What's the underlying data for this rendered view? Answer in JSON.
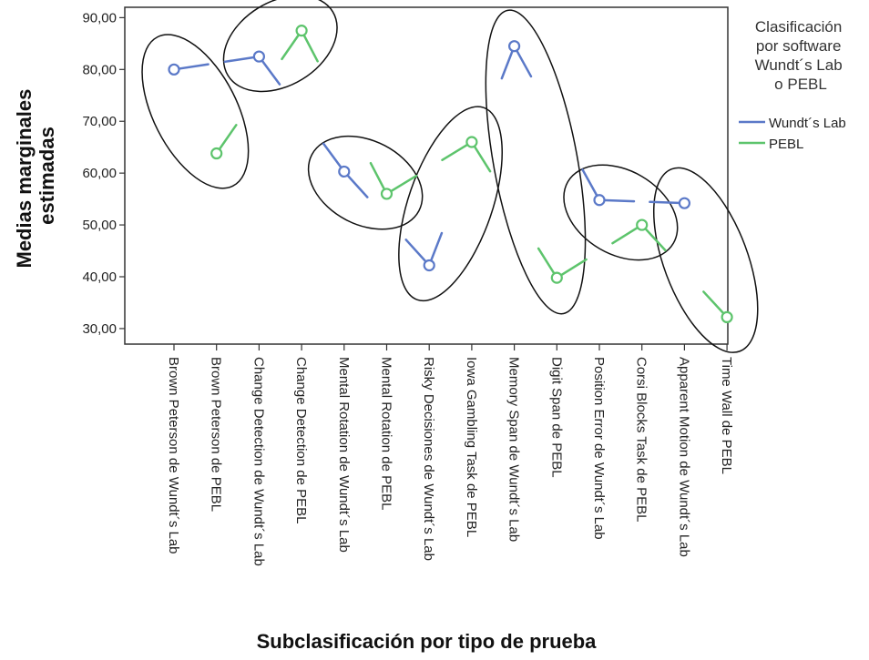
{
  "chart_data": {
    "type": "line",
    "xlabel": "Subclasificación por tipo de prueba",
    "ylabel_lines": [
      "Medias marginales",
      "estimadas"
    ],
    "ylim": [
      27,
      92
    ],
    "yticks": [
      30,
      40,
      50,
      60,
      70,
      80,
      90
    ],
    "ytick_labels": [
      "30,00",
      "40,00",
      "50,00",
      "60,00",
      "70,00",
      "80,00",
      "90,00"
    ],
    "categories": [
      "Brown Peterson de Wundt´s Lab",
      "Brown Peterson de PEBL",
      "Change Detection de Wundt´s Lab",
      "Change Detection de PEBL",
      "Mental Rotation de Wundt´s Lab",
      "Mental Rotation de PEBL",
      "Risky Decisiones de Wundt´s Lab",
      "Iowa Gambling Task de PEBL",
      "Memory Span de Wundt´s Lab",
      "Digit Span de PEBL",
      "Position Error de Wundt´s Lab",
      "Corsi Blocks Task de PEBL",
      "Apparent Motion de Wundt´s Lab",
      "Time Wall de PEBL"
    ],
    "legend": {
      "title_lines": [
        "Clasificación",
        "por software",
        "Wundt´s Lab",
        "o PEBL"
      ],
      "placement": "right"
    },
    "series": [
      {
        "name": "Wundt´s Lab",
        "color": "#5b79c8",
        "values": [
          80,
          null,
          82.5,
          null,
          60.3,
          null,
          42.2,
          null,
          84.5,
          null,
          54.8,
          null,
          54.2,
          null
        ]
      },
      {
        "name": "PEBL",
        "color": "#5dc46c",
        "values": [
          null,
          63.8,
          null,
          87.5,
          null,
          56,
          null,
          66,
          null,
          39.8,
          null,
          50,
          null,
          32.2
        ]
      }
    ],
    "groups": [
      [
        0,
        1
      ],
      [
        2,
        3
      ],
      [
        4,
        5
      ],
      [
        6,
        7
      ],
      [
        8,
        9
      ],
      [
        10,
        11
      ],
      [
        12,
        13
      ]
    ]
  }
}
